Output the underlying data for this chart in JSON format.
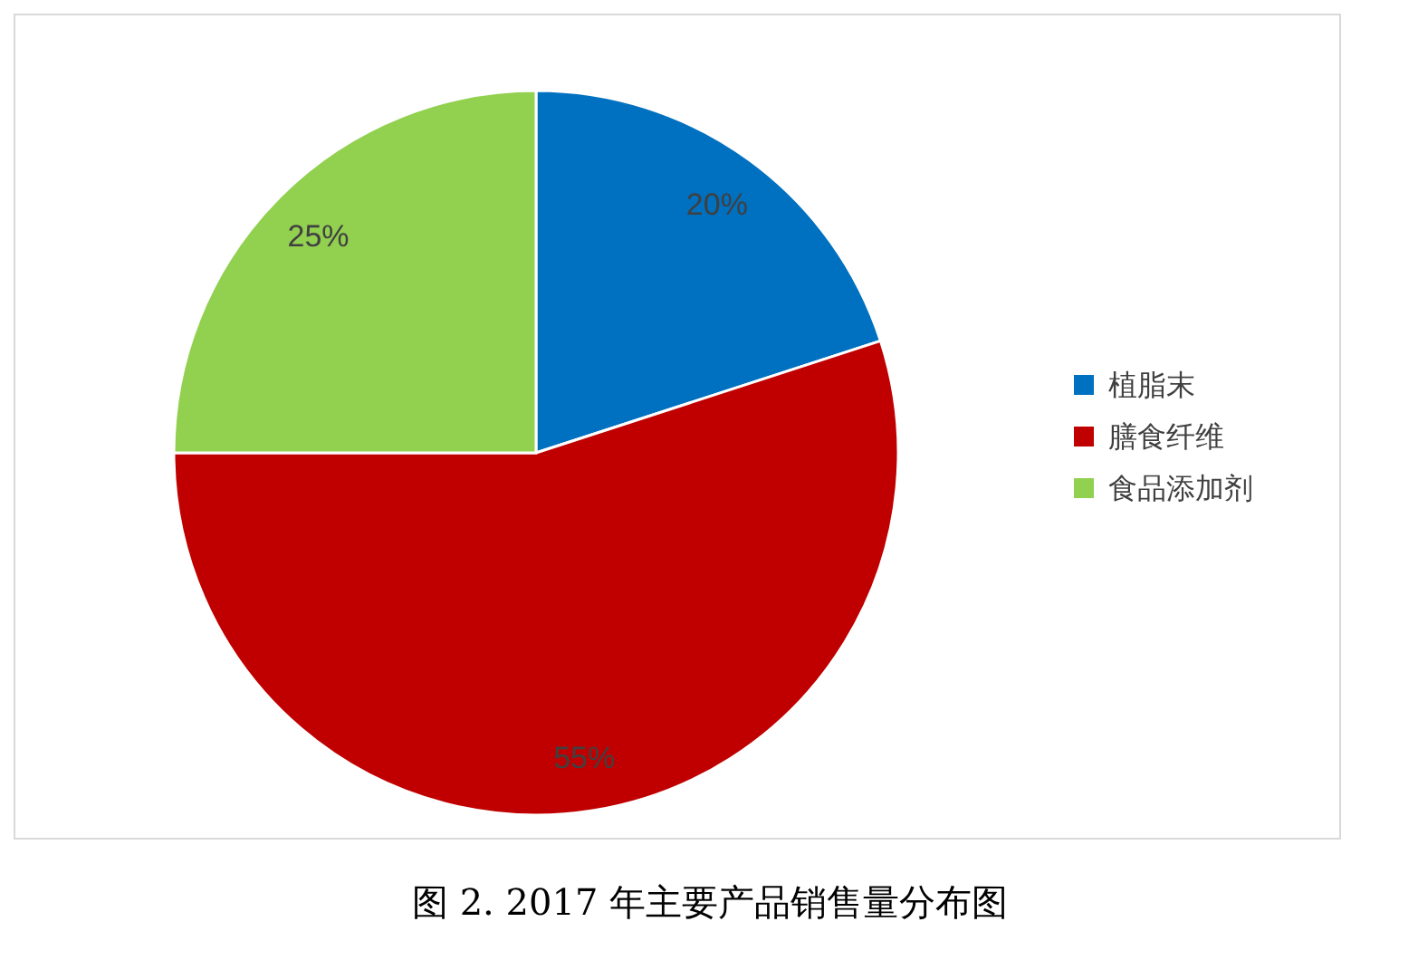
{
  "chart_data": {
    "type": "pie",
    "title": "图 2. 2017 年主要产品销售量分布图",
    "categories": [
      "植脂末",
      "膳食纤维",
      "食品添加剂"
    ],
    "values": [
      20,
      55,
      25
    ],
    "colors": [
      "#0070c0",
      "#c00000",
      "#92d050"
    ],
    "value_labels": [
      "20%",
      "55%",
      "25%"
    ],
    "legend": "right"
  }
}
